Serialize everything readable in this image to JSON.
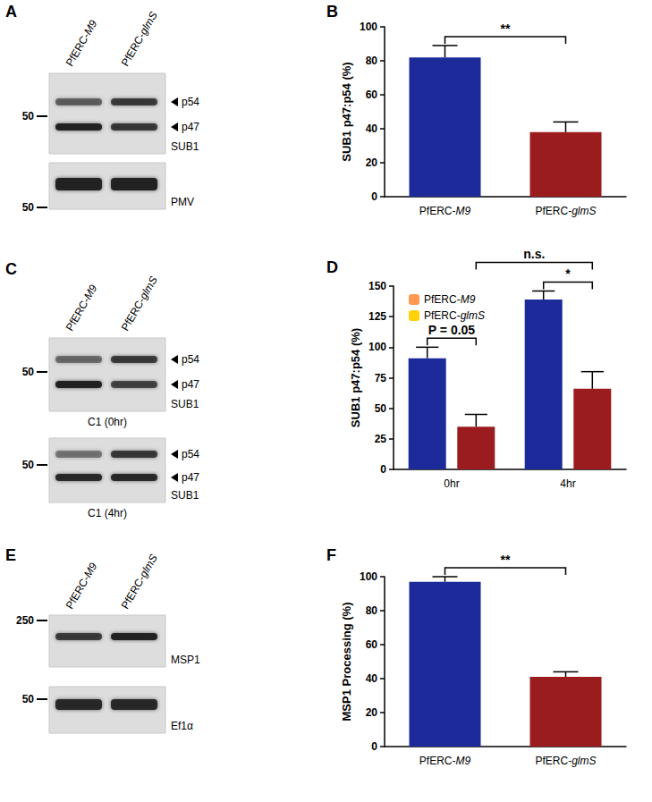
{
  "chart_data": [
    {
      "type": "bar",
      "title": "B",
      "categories": [
        "PfERC-M9",
        "PfERC-glmS"
      ],
      "values": [
        82,
        38
      ],
      "errors": [
        7,
        6
      ],
      "colors": [
        "#1c2b99",
        "#9b1c1f"
      ],
      "ylabel": "SUB1 p47:p54 (%)",
      "ylim": [
        0,
        100
      ],
      "yticks": [
        0,
        20,
        40,
        60,
        80,
        100
      ],
      "grid": false,
      "annotations": [
        {
          "text": "**",
          "from": [
            0,
            0
          ],
          "to": [
            0,
            1
          ]
        }
      ]
    },
    {
      "type": "bar",
      "title": "D",
      "categories": [
        "0hr",
        "4hr"
      ],
      "series": [
        {
          "name": "PfERC-M9",
          "color": "#1c2b99",
          "values": [
            91,
            139
          ],
          "errors": [
            9,
            7
          ]
        },
        {
          "name": "PfERC-glmS",
          "color": "#9b1c1f",
          "values": [
            35,
            66
          ],
          "errors": [
            10,
            14
          ]
        }
      ],
      "ylabel": "SUB1 p47:p54 (%)",
      "ylim": [
        0,
        150
      ],
      "yticks": [
        0,
        25,
        50,
        75,
        100,
        125,
        150
      ],
      "grid": false,
      "legend": "upper left",
      "annotations": [
        {
          "text": "P = 0.05",
          "from": [
            0,
            0
          ],
          "to": [
            1,
            0
          ]
        },
        {
          "text": "*",
          "from": [
            0,
            1
          ],
          "to": [
            1,
            1
          ]
        },
        {
          "text": "n.s.",
          "from": [
            1,
            0
          ],
          "to": [
            1,
            1
          ]
        }
      ]
    },
    {
      "type": "bar",
      "title": "F",
      "categories": [
        "PfERC-M9",
        "PfERC-glmS"
      ],
      "values": [
        97,
        41
      ],
      "errors": [
        3,
        3
      ],
      "colors": [
        "#1c2b99",
        "#9b1c1f"
      ],
      "ylabel": "MSP1 Processing (%)",
      "ylim": [
        0,
        100
      ],
      "yticks": [
        0,
        20,
        40,
        60,
        80,
        100
      ],
      "grid": false,
      "annotations": [
        {
          "text": "**",
          "from": [
            0,
            0
          ],
          "to": [
            0,
            1
          ]
        }
      ]
    }
  ],
  "blots": [
    {
      "panel": "A",
      "lanes": [
        "PfERC-M9",
        "PfERC-glmS"
      ],
      "strips": [
        {
          "markers": [
            50
          ],
          "bands": [
            "p54",
            "p47"
          ],
          "label": "SUB1"
        },
        {
          "markers": [
            50
          ],
          "label": "PMV"
        }
      ]
    },
    {
      "panel": "C",
      "lanes": [
        "PfERC-M9",
        "PfERC-glmS"
      ],
      "strips": [
        {
          "markers": [
            50
          ],
          "bands": [
            "p54",
            "p47"
          ],
          "label": "SUB1",
          "caption": "C1 (0hr)"
        },
        {
          "markers": [
            50
          ],
          "bands": [
            "p54",
            "p47"
          ],
          "label": "SUB1",
          "caption": "C1 (4hr)"
        }
      ]
    },
    {
      "panel": "E",
      "lanes": [
        "PfERC-M9",
        "PfERC-glmS"
      ],
      "strips": [
        {
          "markers": [
            250
          ],
          "label": "MSP1"
        },
        {
          "markers": [
            50
          ],
          "label": "Ef1α"
        }
      ]
    }
  ]
}
